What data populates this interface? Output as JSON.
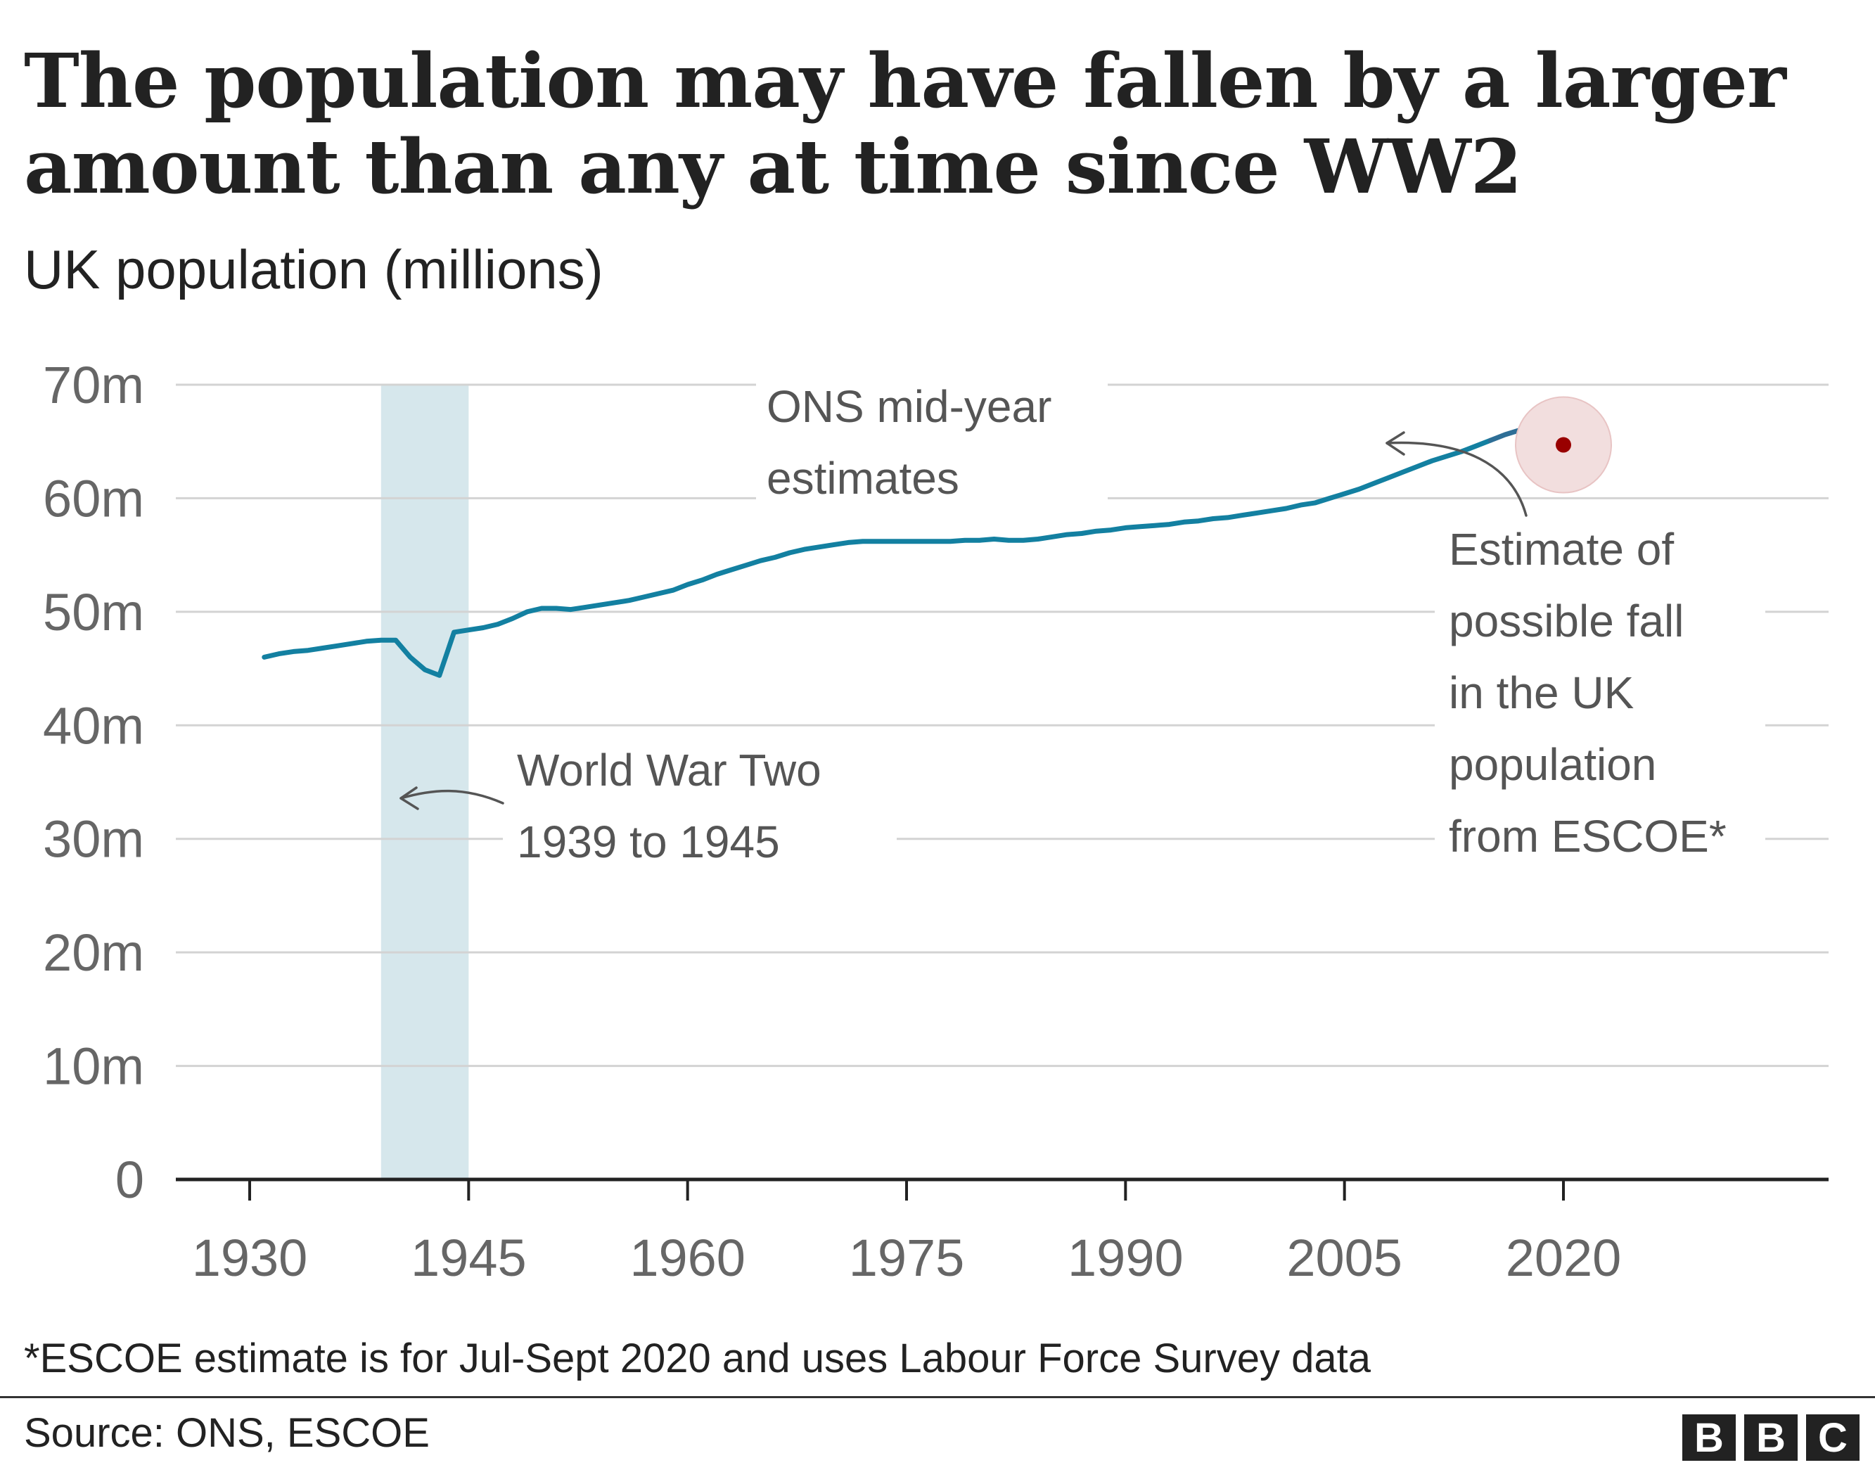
{
  "title": "The population may have fallen by a larger amount than any at time since WW2",
  "subtitle": "UK population (millions)",
  "footnote": "*ESCOE estimate is for Jul-Sept 2020 and uses Labour Force Survey data",
  "source": "Source: ONS, ESCOE",
  "logo": [
    "B",
    "B",
    "C"
  ],
  "colors": {
    "line": "#1380A1",
    "line_recent": "#2E6E96",
    "war_band": "#D6E7EC",
    "estimate_point": "#990000",
    "estimate_halo": "#F2DEDE",
    "grid": "#D3D3D3",
    "axis": "#222222"
  },
  "chart_data": {
    "type": "line",
    "title": "The population may have fallen by a larger amount than any at time since WW2",
    "ylabel": "UK population (millions)",
    "xlabel": "",
    "xlim": [
      1927,
      2036
    ],
    "ylim": [
      0,
      70
    ],
    "x_ticks": [
      1930,
      1945,
      1960,
      1975,
      1990,
      2005,
      2020
    ],
    "x_tick_labels": [
      "1930",
      "1945",
      "1960",
      "1975",
      "1990",
      "2005",
      "2020"
    ],
    "y_ticks": [
      0,
      10,
      20,
      30,
      40,
      50,
      60,
      70
    ],
    "y_tick_labels": [
      "0",
      "10m",
      "20m",
      "30m",
      "40m",
      "50m",
      "60m",
      "70m"
    ],
    "grid": true,
    "series": [
      {
        "name": "ONS mid-year estimates",
        "x": [
          1931,
          1932,
          1933,
          1934,
          1935,
          1936,
          1937,
          1938,
          1939,
          1940,
          1941,
          1942,
          1943,
          1944,
          1945,
          1946,
          1947,
          1948,
          1949,
          1950,
          1951,
          1952,
          1953,
          1954,
          1955,
          1956,
          1957,
          1958,
          1959,
          1960,
          1961,
          1962,
          1963,
          1964,
          1965,
          1966,
          1967,
          1968,
          1969,
          1970,
          1971,
          1972,
          1973,
          1974,
          1975,
          1976,
          1977,
          1978,
          1979,
          1980,
          1981,
          1982,
          1983,
          1984,
          1985,
          1986,
          1987,
          1988,
          1989,
          1990,
          1991,
          1992,
          1993,
          1994,
          1995,
          1996,
          1997,
          1998,
          1999,
          2000,
          2001,
          2002,
          2003,
          2004,
          2005,
          2006,
          2007,
          2008,
          2009,
          2010,
          2011,
          2012,
          2013,
          2014,
          2015,
          2016,
          2017,
          2018,
          2019
        ],
        "values": [
          46.0,
          46.3,
          46.5,
          46.6,
          46.8,
          47.0,
          47.2,
          47.4,
          47.5,
          47.5,
          46.0,
          44.9,
          44.4,
          48.2,
          48.4,
          48.6,
          48.9,
          49.4,
          50.0,
          50.3,
          50.3,
          50.2,
          50.4,
          50.6,
          50.8,
          51.0,
          51.3,
          51.6,
          51.9,
          52.4,
          52.8,
          53.3,
          53.7,
          54.1,
          54.5,
          54.8,
          55.2,
          55.5,
          55.7,
          55.9,
          56.1,
          56.2,
          56.2,
          56.2,
          56.2,
          56.2,
          56.2,
          56.2,
          56.3,
          56.3,
          56.4,
          56.3,
          56.3,
          56.4,
          56.6,
          56.8,
          56.9,
          57.1,
          57.2,
          57.4,
          57.5,
          57.6,
          57.7,
          57.9,
          58.0,
          58.2,
          58.3,
          58.5,
          58.7,
          58.9,
          59.1,
          59.4,
          59.6,
          60.0,
          60.4,
          60.8,
          61.3,
          61.8,
          62.3,
          62.8,
          63.3,
          63.7,
          64.1,
          64.6,
          65.1,
          65.6,
          66.0,
          66.4,
          66.8
        ]
      },
      {
        "name": "Estimate of possible fall in the UK population from ESCOE*",
        "x": [
          2020
        ],
        "values": [
          64.7
        ]
      }
    ],
    "shaded_band": {
      "from": 1939,
      "to": 1945
    },
    "annotations": {
      "ons": [
        "ONS mid-year",
        "estimates"
      ],
      "war": [
        "World War Two",
        "1939 to 1945"
      ],
      "escoe": [
        "Estimate of",
        "possible fall",
        "in the UK",
        "population",
        "from ESCOE*"
      ]
    }
  }
}
